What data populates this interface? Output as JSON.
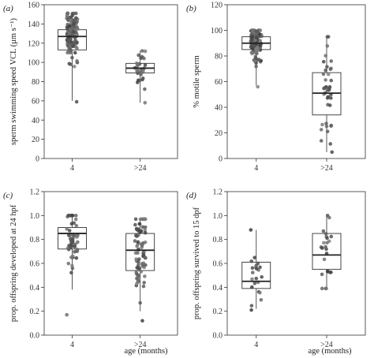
{
  "figure": {
    "xlabel": "age (months)"
  },
  "chart_data": [
    {
      "type": "box",
      "panel": "(a)",
      "ylabel": "sperm swimming speed VCL (μm s⁻¹)",
      "categories": [
        "4",
        ">24"
      ],
      "ylim": [
        0,
        160
      ],
      "yticks": [
        0,
        20,
        40,
        60,
        80,
        100,
        120,
        140,
        160
      ],
      "boxes": [
        {
          "category": "4",
          "q1": 113,
          "median": 127,
          "q3": 134,
          "whisker_low": 60,
          "whisker_high": 151
        },
        {
          "category": ">24",
          "q1": 89,
          "median": 94,
          "q3": 99,
          "whisker_low": 58,
          "whisker_high": 112
        }
      ],
      "points": [
        {
          "category": "4",
          "n": 120,
          "min": 59,
          "max": 151,
          "center": 127,
          "spread": 13,
          "seed": 11
        },
        {
          "category": ">24",
          "n": 35,
          "min": 58,
          "max": 112,
          "center": 94,
          "spread": 9,
          "seed": 23
        }
      ]
    },
    {
      "type": "box",
      "panel": "(b)",
      "ylabel": "% motile sperm",
      "categories": [
        "4",
        ">24"
      ],
      "ylim": [
        0,
        120
      ],
      "yticks": [
        0,
        20,
        40,
        60,
        80,
        100,
        120
      ],
      "boxes": [
        {
          "category": "4",
          "q1": 85,
          "median": 90,
          "q3": 95,
          "whisker_low": 57,
          "whisker_high": 100
        },
        {
          "category": ">24",
          "q1": 34,
          "median": 51,
          "q3": 67,
          "whisker_low": 5,
          "whisker_high": 95
        }
      ],
      "points": [
        {
          "category": "4",
          "n": 120,
          "min": 56,
          "max": 100,
          "center": 90,
          "spread": 8,
          "seed": 37
        },
        {
          "category": ">24",
          "n": 40,
          "min": 5,
          "max": 95,
          "center": 51,
          "spread": 22,
          "seed": 41
        }
      ]
    },
    {
      "type": "box",
      "panel": "(c)",
      "ylabel": "prop. offspring developed at 24 hpf",
      "categories": [
        "4",
        ">24"
      ],
      "ylim": [
        0,
        1.2
      ],
      "yticks": [
        0,
        0.2,
        0.4,
        0.6,
        0.8,
        1.0,
        1.2
      ],
      "boxes": [
        {
          "category": "4",
          "q1": 0.72,
          "median": 0.85,
          "q3": 0.9,
          "whisker_low": 0.38,
          "whisker_high": 1.0
        },
        {
          "category": ">24",
          "q1": 0.54,
          "median": 0.71,
          "q3": 0.85,
          "whisker_low": 0.2,
          "whisker_high": 0.97
        }
      ],
      "points": [
        {
          "category": "4",
          "n": 55,
          "min": 0.17,
          "max": 1.0,
          "center": 0.83,
          "spread": 0.14,
          "seed": 53
        },
        {
          "category": ">24",
          "n": 80,
          "min": 0.12,
          "max": 0.97,
          "center": 0.7,
          "spread": 0.2,
          "seed": 61
        }
      ]
    },
    {
      "type": "box",
      "panel": "(d)",
      "ylabel": "prop. offspring survived to 15 dpf",
      "categories": [
        "4",
        ">24"
      ],
      "ylim": [
        0,
        1.2
      ],
      "yticks": [
        0,
        0.2,
        0.4,
        0.6,
        0.8,
        1.0,
        1.2
      ],
      "boxes": [
        {
          "category": "4",
          "q1": 0.39,
          "median": 0.45,
          "q3": 0.61,
          "whisker_low": 0.22,
          "whisker_high": 0.88
        },
        {
          "category": ">24",
          "q1": 0.55,
          "median": 0.67,
          "q3": 0.85,
          "whisker_low": 0.39,
          "whisker_high": 1.0
        }
      ],
      "points": [
        {
          "category": "4",
          "n": 22,
          "min": 0.21,
          "max": 0.88,
          "center": 0.47,
          "spread": 0.16,
          "seed": 71
        },
        {
          "category": ">24",
          "n": 24,
          "min": 0.39,
          "max": 1.0,
          "center": 0.7,
          "spread": 0.17,
          "seed": 83
        }
      ]
    }
  ]
}
